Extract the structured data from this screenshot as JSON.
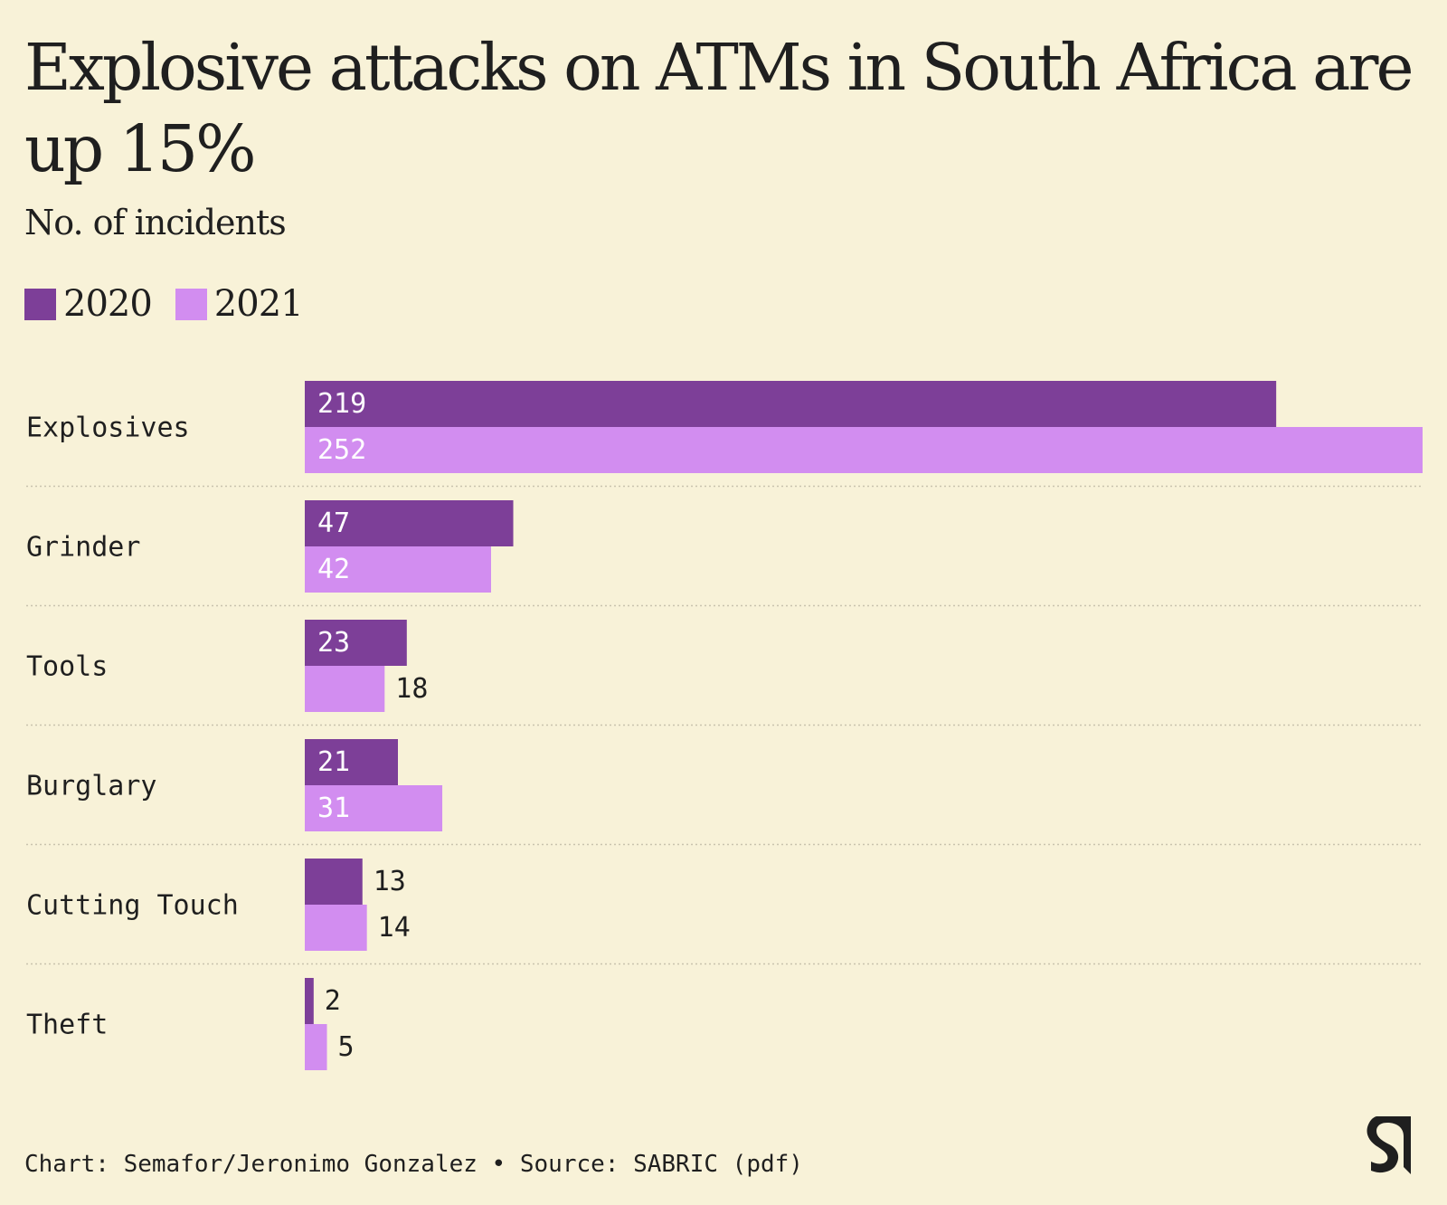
{
  "colors": {
    "background": "#f8f2d8",
    "series_2020": "#7d3f98",
    "series_2021": "#d28df0",
    "separator": "#c9c3ad",
    "label_inside": "#ffffff",
    "label_outside": "#1f1f1f"
  },
  "header": {
    "title": "Explosive attacks on ATMs in South Africa are up 15%",
    "subtitle": "No. of incidents"
  },
  "legend": [
    {
      "label": "2020",
      "color": "#7d3f98"
    },
    {
      "label": "2021",
      "color": "#d28df0"
    }
  ],
  "chart_data": {
    "type": "bar",
    "orientation": "horizontal",
    "title": "Explosive attacks on ATMs in South Africa are up 15%",
    "subtitle": "No. of incidents",
    "categories": [
      "Explosives",
      "Grinder",
      "Tools",
      "Burglary",
      "Cutting Touch",
      "Theft"
    ],
    "series": [
      {
        "name": "2020",
        "values": [
          219,
          47,
          23,
          21,
          13,
          2
        ]
      },
      {
        "name": "2021",
        "values": [
          252,
          42,
          18,
          31,
          14,
          5
        ]
      }
    ],
    "xlim": [
      0,
      252
    ],
    "grid": false,
    "legend_position": "top-left"
  },
  "footer": {
    "credit": "Chart: Semafor/Jeronimo Gonzalez • Source: SABRIC (pdf)"
  },
  "logo": {
    "icon": "semafor-logo-icon"
  }
}
